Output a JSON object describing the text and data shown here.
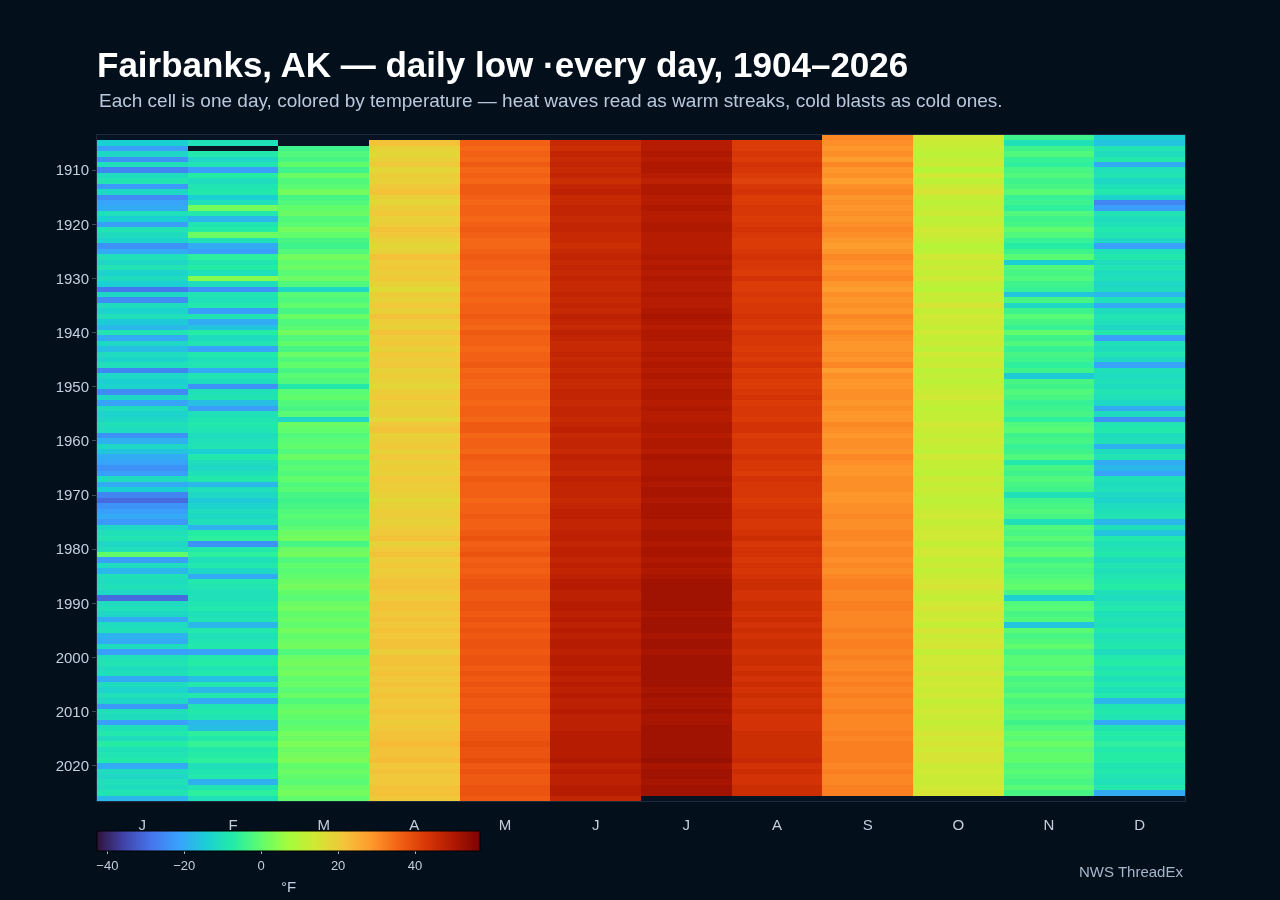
{
  "chart_data": {
    "type": "heatmap",
    "title": "Fairbanks, AK — daily low ·every day, 1904–2026",
    "subtitle": "Each cell is one day, colored by temperature — heat waves read as warm streaks, cold blasts as cold ones.",
    "clabel": "°F",
    "annotations": [
      "NWS ThreadEx"
    ],
    "categories": [
      "J",
      "F",
      "M",
      "A",
      "M",
      "J",
      "J",
      "A",
      "S",
      "O",
      "N",
      "D"
    ],
    "y_categories": [
      null,
      null,
      null,
      null,
      null,
      null,
      "1910",
      null,
      null,
      null,
      null,
      null,
      null,
      null,
      null,
      null,
      "1920",
      null,
      null,
      null,
      null,
      null,
      null,
      null,
      null,
      null,
      "1930",
      null,
      null,
      null,
      null,
      null,
      null,
      null,
      null,
      null,
      "1940",
      null,
      null,
      null,
      null,
      null,
      null,
      null,
      null,
      null,
      "1950",
      null,
      null,
      null,
      null,
      null,
      null,
      null,
      null,
      null,
      "1960",
      null,
      null,
      null,
      null,
      null,
      null,
      null,
      null,
      null,
      "1970",
      null,
      null,
      null,
      null,
      null,
      null,
      null,
      null,
      null,
      "1980",
      null,
      null,
      null,
      null,
      null,
      null,
      null,
      null,
      null,
      "1990",
      null,
      null,
      null,
      null,
      null,
      null,
      null,
      null,
      null,
      "2000",
      null,
      null,
      null,
      null,
      null,
      null,
      null,
      null,
      null,
      "2010",
      null,
      null,
      null,
      null,
      null,
      null,
      null,
      null,
      null,
      "2020",
      null,
      null,
      null,
      null,
      null,
      null
    ],
    "clim": [
      -42.7,
      56.9
    ],
    "cticks": [
      -40,
      -20,
      0,
      20,
      40
    ],
    "cells": [
      [
        null,
        null,
        null,
        null,
        null,
        null,
        null,
        null,
        31,
        14,
        -4,
        -14
      ],
      [
        -14,
        -10,
        null,
        22,
        36,
        46,
        49,
        42,
        30,
        13,
        -10,
        -16
      ],
      [
        -22,
        null,
        -4,
        19,
        35,
        45,
        49,
        42,
        29,
        12,
        -4,
        -9
      ],
      [
        -12,
        -8,
        -2,
        18,
        36,
        47,
        50,
        43,
        30,
        11,
        -2,
        -11
      ],
      [
        -24,
        -12,
        -3,
        19,
        35,
        46,
        49,
        42,
        28,
        12,
        -5,
        -8
      ],
      [
        -10,
        -9,
        0,
        21,
        37,
        47,
        50,
        44,
        31,
        13,
        -6,
        -20
      ],
      [
        -26,
        -22,
        -4,
        18,
        35,
        46,
        50,
        43,
        29,
        10,
        -3,
        -10
      ],
      [
        -11,
        -7,
        1,
        20,
        36,
        47,
        49,
        42,
        30,
        14,
        -2,
        -9
      ],
      [
        -9,
        -11,
        -2,
        19,
        35,
        45,
        48,
        41,
        28,
        11,
        -4,
        -12
      ],
      [
        -23,
        -9,
        -1,
        21,
        37,
        47,
        50,
        43,
        30,
        13,
        -3,
        -10
      ],
      [
        -12,
        -8,
        2,
        22,
        37,
        48,
        50,
        44,
        31,
        15,
        -1,
        -8
      ],
      [
        -25,
        -14,
        -3,
        19,
        36,
        46,
        49,
        42,
        29,
        12,
        -5,
        -13
      ],
      [
        -21,
        -10,
        -2,
        18,
        35,
        46,
        49,
        42,
        30,
        11,
        -4,
        -26
      ],
      [
        -20,
        2,
        0,
        20,
        36,
        47,
        50,
        43,
        29,
        12,
        -6,
        -22
      ],
      [
        -10,
        -8,
        1,
        21,
        36,
        47,
        49,
        43,
        30,
        13,
        -2,
        -9
      ],
      [
        -14,
        -18,
        -2,
        19,
        35,
        46,
        49,
        42,
        29,
        11,
        -4,
        -11
      ],
      [
        -22,
        -9,
        -1,
        20,
        36,
        47,
        50,
        43,
        30,
        12,
        -3,
        -10
      ],
      [
        -9,
        -7,
        2,
        22,
        37,
        47,
        50,
        44,
        31,
        14,
        0,
        -8
      ],
      [
        -11,
        1,
        0,
        21,
        36,
        46,
        49,
        43,
        30,
        13,
        -2,
        -9
      ],
      [
        -13,
        -10,
        -3,
        19,
        35,
        46,
        49,
        42,
        29,
        12,
        -5,
        -12
      ],
      [
        -24,
        -20,
        -4,
        18,
        35,
        45,
        49,
        42,
        28,
        10,
        -7,
        -22
      ],
      [
        -20,
        -22,
        -2,
        19,
        36,
        46,
        49,
        43,
        29,
        11,
        -4,
        -10
      ],
      [
        -10,
        -6,
        2,
        22,
        37,
        47,
        50,
        44,
        31,
        14,
        -1,
        -8
      ],
      [
        -12,
        -9,
        0,
        20,
        36,
        46,
        49,
        43,
        30,
        12,
        -14,
        -11
      ],
      [
        -9,
        -7,
        1,
        21,
        36,
        47,
        50,
        43,
        29,
        13,
        -2,
        -9
      ],
      [
        -13,
        -10,
        -1,
        20,
        35,
        46,
        49,
        42,
        30,
        12,
        -3,
        -11
      ],
      [
        -11,
        4,
        1,
        21,
        36,
        47,
        50,
        44,
        31,
        14,
        -2,
        -10
      ],
      [
        -14,
        -11,
        -2,
        19,
        35,
        46,
        49,
        42,
        29,
        11,
        -4,
        -12
      ],
      [
        -28,
        -24,
        -12,
        17,
        35,
        46,
        49,
        42,
        28,
        10,
        -5,
        -11
      ],
      [
        -12,
        -9,
        -1,
        20,
        36,
        47,
        50,
        43,
        30,
        13,
        -16,
        -18
      ],
      [
        -25,
        -10,
        -2,
        19,
        35,
        46,
        49,
        42,
        29,
        12,
        -3,
        -10
      ],
      [
        -11,
        -8,
        0,
        21,
        36,
        47,
        49,
        43,
        30,
        15,
        -12,
        -20
      ],
      [
        -13,
        -22,
        -3,
        19,
        36,
        46,
        50,
        43,
        29,
        12,
        -4,
        -11
      ],
      [
        -10,
        -9,
        1,
        22,
        37,
        48,
        51,
        44,
        31,
        14,
        -1,
        -9
      ],
      [
        -15,
        -20,
        -2,
        20,
        36,
        47,
        50,
        43,
        30,
        13,
        -3,
        -10
      ],
      [
        -18,
        -16,
        -1,
        19,
        35,
        46,
        49,
        42,
        29,
        12,
        -5,
        -12
      ],
      [
        -9,
        -7,
        2,
        22,
        37,
        48,
        50,
        44,
        31,
        14,
        0,
        -8
      ],
      [
        -20,
        -11,
        -2,
        20,
        36,
        47,
        50,
        43,
        30,
        12,
        -4,
        -22
      ],
      [
        -12,
        -9,
        0,
        21,
        36,
        46,
        49,
        43,
        29,
        13,
        -2,
        -10
      ],
      [
        -17,
        -21,
        -3,
        19,
        35,
        46,
        49,
        42,
        29,
        11,
        -5,
        -11
      ],
      [
        -11,
        -8,
        1,
        21,
        36,
        47,
        50,
        43,
        30,
        14,
        -3,
        -9
      ],
      [
        -13,
        -10,
        -2,
        20,
        36,
        46,
        49,
        42,
        29,
        12,
        -4,
        -12
      ],
      [
        -10,
        -9,
        0,
        21,
        37,
        47,
        50,
        44,
        31,
        13,
        -6,
        -21
      ],
      [
        -26,
        -20,
        -3,
        19,
        35,
        46,
        49,
        42,
        28,
        11,
        -4,
        -10
      ],
      [
        -12,
        -9,
        -1,
        20,
        36,
        47,
        50,
        43,
        30,
        12,
        -15,
        -11
      ],
      [
        -14,
        -11,
        -2,
        19,
        35,
        46,
        49,
        42,
        29,
        11,
        -3,
        -10
      ],
      [
        -13,
        -24,
        -8,
        18,
        35,
        46,
        49,
        42,
        29,
        12,
        -4,
        -11
      ],
      [
        -25,
        -10,
        -1,
        20,
        36,
        47,
        50,
        43,
        30,
        13,
        -2,
        -9
      ],
      [
        -12,
        -9,
        0,
        21,
        36,
        47,
        50,
        44,
        30,
        14,
        -3,
        -10
      ],
      [
        -21,
        -17,
        -2,
        19,
        35,
        46,
        49,
        42,
        29,
        12,
        -5,
        -12
      ],
      [
        -11,
        -22,
        -3,
        20,
        36,
        47,
        50,
        43,
        30,
        11,
        -4,
        -20
      ],
      [
        -13,
        -10,
        -1,
        20,
        36,
        47,
        49,
        43,
        29,
        12,
        -3,
        -11
      ],
      [
        -12,
        -9,
        -12,
        18,
        35,
        46,
        49,
        42,
        29,
        12,
        -6,
        -24
      ],
      [
        -10,
        -8,
        1,
        21,
        37,
        47,
        50,
        44,
        31,
        14,
        -2,
        -9
      ],
      [
        -11,
        -9,
        0,
        22,
        37,
        48,
        50,
        44,
        30,
        13,
        -1,
        -8
      ],
      [
        -24,
        -11,
        -2,
        19,
        35,
        46,
        49,
        42,
        29,
        12,
        -4,
        -11
      ],
      [
        -19,
        -10,
        -1,
        20,
        36,
        47,
        50,
        43,
        30,
        13,
        -3,
        -10
      ],
      [
        -12,
        -9,
        0,
        21,
        36,
        47,
        50,
        43,
        30,
        12,
        -5,
        -19
      ],
      [
        -16,
        -14,
        -2,
        19,
        35,
        46,
        49,
        42,
        29,
        11,
        -4,
        -11
      ],
      [
        -20,
        -8,
        1,
        21,
        37,
        48,
        51,
        44,
        31,
        14,
        -2,
        -9
      ],
      [
        -21,
        -11,
        -2,
        19,
        36,
        47,
        50,
        43,
        30,
        12,
        -8,
        -20
      ],
      [
        -24,
        -12,
        -1,
        20,
        36,
        47,
        50,
        43,
        29,
        12,
        -3,
        -18
      ],
      [
        -22,
        -10,
        -2,
        19,
        35,
        46,
        50,
        42,
        29,
        11,
        -4,
        -21
      ],
      [
        -11,
        -8,
        0,
        21,
        37,
        48,
        51,
        44,
        30,
        13,
        -2,
        -10
      ],
      [
        -20,
        -18,
        -2,
        20,
        36,
        47,
        50,
        43,
        30,
        12,
        -3,
        -11
      ],
      [
        -14,
        -10,
        -1,
        20,
        36,
        47,
        51,
        43,
        30,
        13,
        -4,
        -10
      ],
      [
        -26,
        -12,
        -3,
        19,
        36,
        47,
        51,
        43,
        29,
        12,
        -10,
        -12
      ],
      [
        -30,
        -15,
        -4,
        18,
        35,
        46,
        50,
        42,
        29,
        11,
        -4,
        -13
      ],
      [
        -24,
        -13,
        -3,
        19,
        36,
        47,
        51,
        43,
        30,
        12,
        -3,
        -11
      ],
      [
        -22,
        -11,
        -2,
        20,
        36,
        48,
        51,
        44,
        30,
        13,
        -2,
        -10
      ],
      [
        -20,
        -12,
        -1,
        20,
        37,
        48,
        51,
        44,
        31,
        14,
        -3,
        -9
      ],
      [
        -23,
        -10,
        -2,
        19,
        36,
        47,
        50,
        43,
        30,
        12,
        -10,
        -18
      ],
      [
        -12,
        -19,
        -1,
        20,
        36,
        47,
        50,
        43,
        30,
        13,
        -2,
        -10
      ],
      [
        -10,
        -7,
        1,
        21,
        37,
        48,
        51,
        44,
        31,
        14,
        -3,
        -16
      ],
      [
        -9,
        -6,
        2,
        22,
        38,
        48,
        51,
        45,
        31,
        14,
        -1,
        -8
      ],
      [
        -12,
        -24,
        -3,
        19,
        36,
        47,
        50,
        43,
        30,
        12,
        -3,
        -10
      ],
      [
        -10,
        -8,
        1,
        21,
        37,
        48,
        51,
        44,
        31,
        14,
        -1,
        -9
      ],
      [
        0,
        -6,
        2,
        22,
        38,
        48,
        51,
        44,
        31,
        14,
        0,
        -8
      ],
      [
        -22,
        -10,
        -2,
        20,
        36,
        47,
        50,
        43,
        30,
        12,
        -4,
        -11
      ],
      [
        -11,
        -8,
        0,
        21,
        37,
        48,
        51,
        44,
        31,
        13,
        -2,
        -9
      ],
      [
        -18,
        -12,
        -1,
        20,
        36,
        47,
        50,
        43,
        30,
        12,
        -3,
        -10
      ],
      [
        -10,
        -20,
        0,
        21,
        37,
        48,
        51,
        44,
        31,
        13,
        -2,
        -9
      ],
      [
        -11,
        -8,
        1,
        22,
        38,
        49,
        52,
        45,
        32,
        14,
        -1,
        -8
      ],
      [
        -10,
        -9,
        2,
        22,
        38,
        49,
        52,
        45,
        32,
        15,
        0,
        -7
      ],
      [
        -12,
        -10,
        0,
        21,
        37,
        48,
        52,
        44,
        31,
        13,
        -3,
        -10
      ],
      [
        -30,
        -10,
        -1,
        20,
        37,
        48,
        52,
        44,
        31,
        12,
        -14,
        -11
      ],
      [
        -11,
        -9,
        1,
        22,
        38,
        49,
        52,
        45,
        32,
        14,
        -2,
        -9
      ],
      [
        -10,
        -8,
        2,
        22,
        38,
        49,
        52,
        45,
        32,
        15,
        -1,
        -8
      ],
      [
        -12,
        -10,
        0,
        21,
        37,
        48,
        51,
        44,
        31,
        13,
        -3,
        -10
      ],
      [
        -20,
        -9,
        1,
        22,
        38,
        49,
        52,
        45,
        31,
        14,
        -2,
        -9
      ],
      [
        -11,
        -18,
        0,
        21,
        37,
        48,
        52,
        44,
        31,
        12,
        -16,
        -10
      ],
      [
        -10,
        -8,
        2,
        22,
        38,
        49,
        52,
        45,
        32,
        15,
        -1,
        -8
      ],
      [
        -19,
        -10,
        0,
        21,
        37,
        48,
        51,
        44,
        31,
        13,
        -3,
        -10
      ],
      [
        -20,
        -9,
        1,
        22,
        38,
        49,
        52,
        45,
        32,
        14,
        -2,
        -9
      ],
      [
        -11,
        -8,
        2,
        22,
        38,
        49,
        52,
        45,
        32,
        15,
        0,
        -8
      ],
      [
        -22,
        -21,
        -2,
        20,
        37,
        48,
        51,
        44,
        31,
        12,
        -3,
        -11
      ],
      [
        -10,
        -8,
        1,
        22,
        38,
        49,
        52,
        45,
        32,
        14,
        -1,
        -8
      ],
      [
        -9,
        -7,
        2,
        22,
        38,
        49,
        52,
        45,
        31,
        14,
        -1,
        -7
      ],
      [
        -11,
        -9,
        1,
        21,
        37,
        48,
        52,
        44,
        31,
        13,
        -2,
        -9
      ],
      [
        -10,
        -8,
        2,
        22,
        38,
        49,
        52,
        45,
        32,
        15,
        0,
        -8
      ],
      [
        -20,
        -17,
        0,
        21,
        37,
        48,
        52,
        44,
        31,
        13,
        -3,
        -10
      ],
      [
        -11,
        -8,
        1,
        22,
        38,
        49,
        52,
        45,
        32,
        14,
        -2,
        -8
      ],
      [
        -13,
        -18,
        -1,
        21,
        37,
        48,
        51,
        44,
        31,
        13,
        -3,
        -10
      ],
      [
        -10,
        -8,
        1,
        22,
        38,
        49,
        52,
        45,
        32,
        14,
        -1,
        -8
      ],
      [
        -12,
        -20,
        -2,
        21,
        37,
        48,
        51,
        44,
        31,
        12,
        -3,
        -18
      ],
      [
        -23,
        -9,
        0,
        21,
        37,
        48,
        51,
        44,
        31,
        13,
        -2,
        -9
      ],
      [
        -10,
        -8,
        1,
        22,
        38,
        49,
        52,
        45,
        32,
        14,
        -1,
        -8
      ],
      [
        -11,
        -9,
        0,
        21,
        37,
        48,
        51,
        44,
        31,
        13,
        -2,
        -9
      ],
      [
        -22,
        -18,
        -1,
        20,
        37,
        48,
        51,
        44,
        31,
        12,
        -4,
        -20
      ],
      [
        -10,
        -17,
        0,
        21,
        37,
        48,
        52,
        44,
        31,
        13,
        -2,
        -9
      ],
      [
        -8,
        -6,
        2,
        22,
        38,
        49,
        52,
        45,
        32,
        15,
        0,
        -7
      ],
      [
        -11,
        -8,
        1,
        22,
        38,
        49,
        52,
        45,
        31,
        14,
        -1,
        -8
      ],
      [
        -7,
        -5,
        3,
        23,
        39,
        49,
        52,
        45,
        32,
        15,
        1,
        -6
      ],
      [
        -10,
        -8,
        1,
        22,
        38,
        49,
        52,
        45,
        32,
        14,
        -1,
        -8
      ],
      [
        -9,
        -7,
        2,
        22,
        38,
        49,
        52,
        45,
        32,
        15,
        0,
        -7
      ],
      [
        -8,
        -6,
        3,
        23,
        39,
        50,
        53,
        46,
        32,
        15,
        0,
        -7
      ],
      [
        -20,
        -10,
        0,
        21,
        37,
        48,
        51,
        44,
        31,
        13,
        -2,
        -9
      ],
      [
        -11,
        -9,
        1,
        22,
        38,
        49,
        52,
        45,
        32,
        14,
        -1,
        -8
      ],
      [
        -12,
        -8,
        0,
        21,
        37,
        48,
        52,
        44,
        31,
        13,
        -2,
        -9
      ],
      [
        -10,
        -19,
        -1,
        21,
        37,
        48,
        51,
        44,
        31,
        13,
        -3,
        -10
      ],
      [
        -11,
        -9,
        1,
        22,
        38,
        49,
        52,
        45,
        32,
        14,
        -1,
        -8
      ],
      [
        -9,
        -6,
        2,
        22,
        38,
        49,
        52,
        45,
        32,
        15,
        -3,
        -20
      ],
      [
        -18,
        -10,
        0,
        21,
        37,
        47,
        null,
        null,
        null,
        null,
        null,
        null
      ]
    ]
  }
}
